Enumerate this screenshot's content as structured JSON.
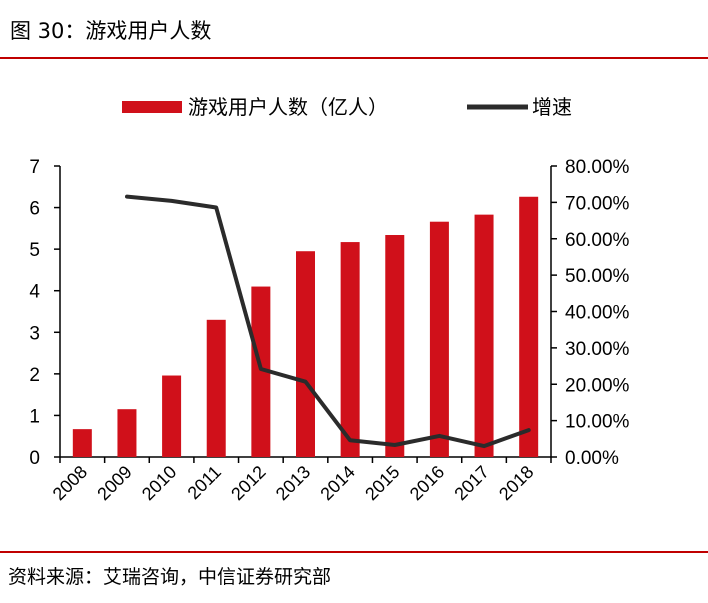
{
  "header": {
    "title": "图 30：游戏用户人数"
  },
  "footer": {
    "source": "资料来源：艾瑞咨询，中信证券研究部"
  },
  "colors": {
    "bar": "#d0101a",
    "line": "#2b2b2b",
    "rule": "#c00000"
  },
  "chart_data": {
    "type": "bar",
    "categories": [
      "2008",
      "2009",
      "2010",
      "2011",
      "2012",
      "2013",
      "2014",
      "2015",
      "2016",
      "2017",
      "2018"
    ],
    "series": [
      {
        "name": "游戏用户人数（亿人）",
        "type": "bar",
        "axis": "left",
        "values": [
          0.67,
          1.15,
          1.96,
          3.3,
          4.1,
          4.95,
          5.17,
          5.34,
          5.66,
          5.83,
          6.26
        ]
      },
      {
        "name": "增速",
        "type": "line",
        "axis": "right",
        "values": [
          null,
          71.6,
          70.4,
          68.6,
          24.2,
          20.7,
          4.6,
          3.3,
          5.8,
          3.0,
          7.4
        ]
      }
    ],
    "ylim": [
      0,
      7
    ],
    "y_ticks": [
      "0",
      "1",
      "2",
      "3",
      "4",
      "5",
      "6",
      "7"
    ],
    "y2lim": [
      0,
      80
    ],
    "y2_ticks": [
      "0.00%",
      "10.00%",
      "20.00%",
      "30.00%",
      "40.00%",
      "50.00%",
      "60.00%",
      "70.00%",
      "80.00%"
    ],
    "legend_position": "top",
    "grid": false
  }
}
